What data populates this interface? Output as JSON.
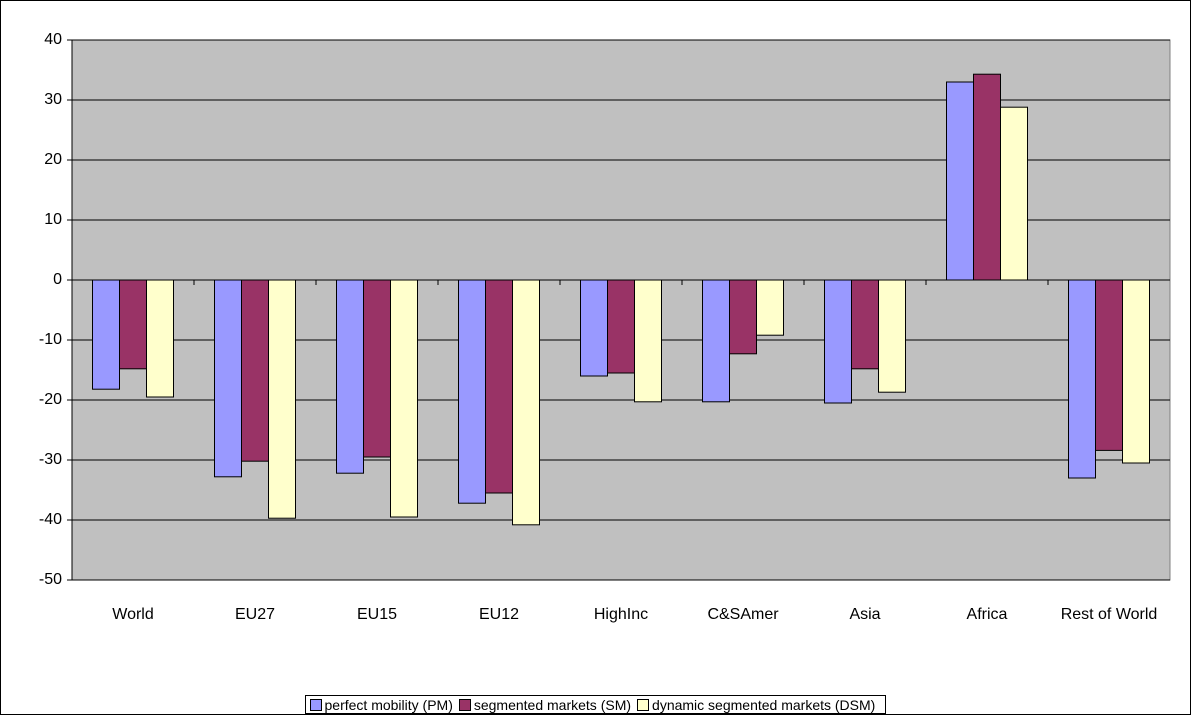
{
  "chart_data": {
    "type": "bar",
    "categories": [
      "World",
      "EU27",
      "EU15",
      "EU12",
      "HighInc",
      "C&SAmer",
      "Asia",
      "Africa",
      "Rest of World"
    ],
    "series": [
      {
        "name": "perfect mobility (PM)",
        "color": "#9999ff",
        "values": [
          -18.2,
          -32.8,
          -32.2,
          -37.2,
          -16,
          -20.3,
          -20.5,
          33,
          -33
        ]
      },
      {
        "name": "segmented markets (SM)",
        "color": "#993366",
        "values": [
          -14.8,
          -30.2,
          -29.5,
          -35.5,
          -15.5,
          -12.3,
          -14.8,
          34.3,
          -28.4
        ]
      },
      {
        "name": "dynamic segmented markets (DSM)",
        "color": "#ffffcc",
        "values": [
          -19.5,
          -39.7,
          -39.5,
          -40.8,
          -20.3,
          -9.2,
          -18.7,
          28.8,
          -30.5
        ]
      }
    ],
    "ylim": [
      -50,
      40
    ],
    "yticks": [
      -50,
      -40,
      -30,
      -20,
      -10,
      0,
      10,
      20,
      30,
      40
    ],
    "grid": true,
    "plot_background": "#c0c0c0",
    "legend_position": "bottom"
  }
}
